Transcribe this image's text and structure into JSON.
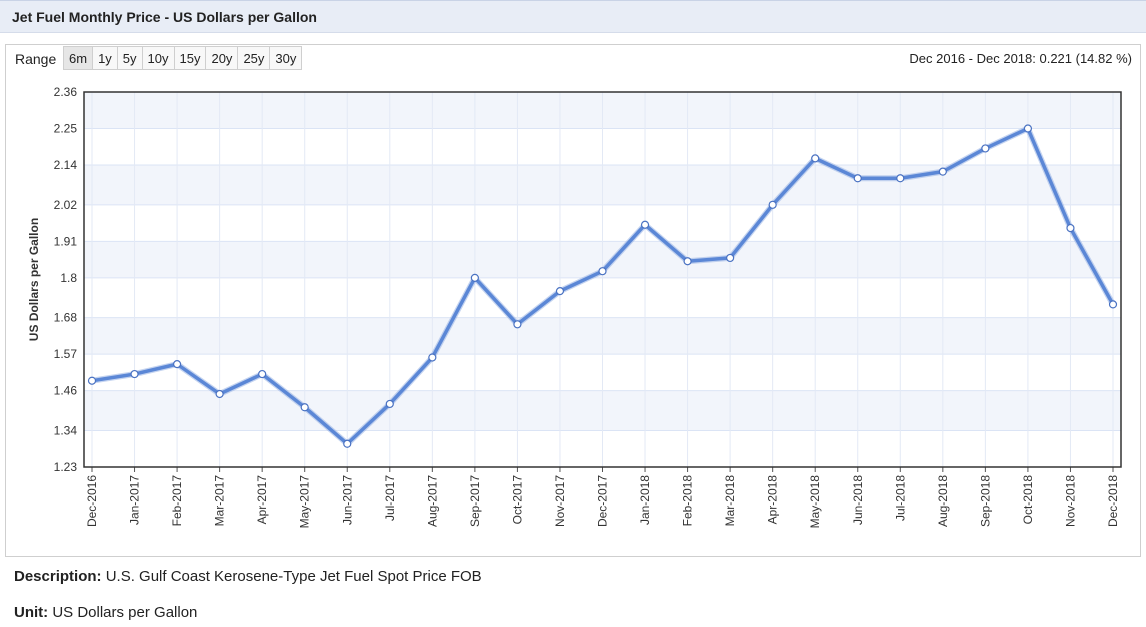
{
  "header": {
    "title": "Jet Fuel Monthly Price - US Dollars per Gallon"
  },
  "range": {
    "label": "Range",
    "buttons": [
      "6m",
      "1y",
      "5y",
      "10y",
      "15y",
      "20y",
      "25y",
      "30y"
    ],
    "active": "6m",
    "summary": "Dec 2016 - Dec 2018: 0.221 (14.82 %)"
  },
  "chart_data": {
    "type": "line",
    "ylabel": "US Dollars per Gallon",
    "xlabel": "",
    "ylim": [
      1.23,
      2.36
    ],
    "yticks": [
      "2.36",
      "2.25",
      "2.14",
      "2.02",
      "1.91",
      "1.8",
      "1.68",
      "1.57",
      "1.46",
      "1.34",
      "1.23"
    ],
    "grid": true,
    "categories": [
      "Dec-2016",
      "Jan-2017",
      "Feb-2017",
      "Mar-2017",
      "Apr-2017",
      "May-2017",
      "Jun-2017",
      "Jul-2017",
      "Aug-2017",
      "Sep-2017",
      "Oct-2017",
      "Nov-2017",
      "Dec-2017",
      "Jan-2018",
      "Feb-2018",
      "Mar-2018",
      "Apr-2018",
      "May-2018",
      "Jun-2018",
      "Jul-2018",
      "Aug-2018",
      "Sep-2018",
      "Oct-2018",
      "Nov-2018",
      "Dec-2018"
    ],
    "series": [
      {
        "values": [
          1.49,
          1.51,
          1.54,
          1.45,
          1.51,
          1.41,
          1.3,
          1.42,
          1.56,
          1.8,
          1.66,
          1.76,
          1.82,
          1.96,
          1.85,
          1.86,
          2.02,
          2.16,
          2.1,
          2.1,
          2.12,
          2.19,
          2.25,
          1.95,
          1.72
        ],
        "color": "#5b87d6"
      }
    ]
  },
  "description": {
    "label": "Description:",
    "text": "U.S. Gulf Coast Kerosene-Type Jet Fuel Spot Price FOB"
  },
  "unit": {
    "label": "Unit:",
    "text": "US Dollars per Gallon"
  }
}
